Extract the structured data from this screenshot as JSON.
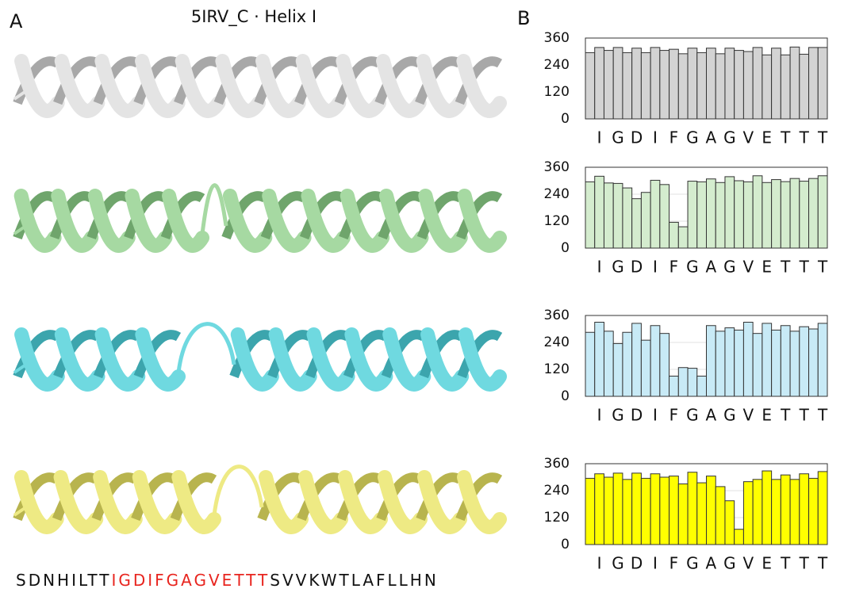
{
  "panel_a_label": "A",
  "panel_b_label": "B",
  "title": "5IRV_C · Helix I",
  "sequence": [
    "SDNHILTT",
    "IGDIFGAGVETTT",
    "SVVKWTLAFLLHN"
  ],
  "chart_data": [
    {
      "type": "bar",
      "color": "#d3d3d3",
      "grid": true,
      "categories": [
        null,
        "I",
        null,
        "G",
        null,
        "D",
        null,
        "I",
        null,
        "F",
        null,
        "G",
        null,
        "A",
        null,
        "G",
        null,
        "V",
        null,
        "E",
        null,
        "T",
        null,
        "T",
        null,
        "T"
      ],
      "values": [
        295,
        318,
        305,
        318,
        295,
        315,
        295,
        318,
        305,
        310,
        290,
        315,
        295,
        315,
        290,
        315,
        305,
        300,
        318,
        285,
        315,
        285,
        320,
        288,
        318,
        318
      ],
      "ylim": [
        0,
        360
      ],
      "yticks": [
        0,
        120,
        240,
        360
      ]
    },
    {
      "type": "bar",
      "color": "#d4ecce",
      "grid": true,
      "categories": [
        null,
        "I",
        null,
        "G",
        null,
        "D",
        null,
        "I",
        null,
        "F",
        null,
        "G",
        null,
        "A",
        null,
        "G",
        null,
        "V",
        null,
        "E",
        null,
        "T",
        null,
        "T",
        null,
        "T"
      ],
      "values": [
        295,
        320,
        290,
        288,
        268,
        220,
        248,
        302,
        283,
        115,
        95,
        298,
        295,
        308,
        292,
        318,
        300,
        295,
        322,
        292,
        305,
        296,
        310,
        298,
        310,
        322
      ],
      "ylim": [
        0,
        360
      ],
      "yticks": [
        0,
        120,
        240,
        360
      ]
    },
    {
      "type": "bar",
      "color": "#c8eaf6",
      "grid": true,
      "categories": [
        null,
        "I",
        null,
        "G",
        null,
        "D",
        null,
        "I",
        null,
        "F",
        null,
        "G",
        null,
        "A",
        null,
        "G",
        null,
        "V",
        null,
        "E",
        null,
        "T",
        null,
        "T",
        null,
        "T"
      ],
      "values": [
        285,
        330,
        290,
        235,
        285,
        325,
        250,
        315,
        280,
        90,
        128,
        125,
        90,
        315,
        290,
        305,
        295,
        330,
        280,
        325,
        295,
        315,
        290,
        310,
        300,
        325
      ],
      "ylim": [
        0,
        360
      ],
      "yticks": [
        0,
        120,
        240,
        360
      ]
    },
    {
      "type": "bar",
      "color": "#ffff00",
      "grid": true,
      "categories": [
        null,
        "I",
        null,
        "G",
        null,
        "D",
        null,
        "I",
        null,
        "F",
        null,
        "G",
        null,
        "A",
        null,
        "G",
        null,
        "V",
        null,
        "E",
        null,
        "T",
        null,
        "T",
        null,
        "T"
      ],
      "values": [
        295,
        315,
        300,
        318,
        290,
        318,
        295,
        315,
        300,
        305,
        270,
        322,
        275,
        305,
        258,
        195,
        68,
        280,
        290,
        328,
        290,
        310,
        290,
        315,
        295,
        325
      ],
      "ylim": [
        0,
        360
      ],
      "yticks": [
        0,
        120,
        240,
        360
      ]
    }
  ]
}
